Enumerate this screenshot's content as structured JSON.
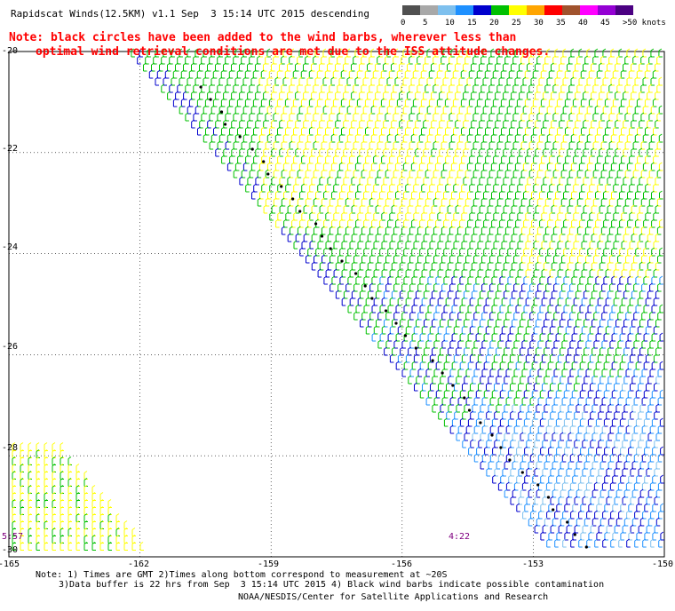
{
  "title": "Rapidscat Winds(12.5KM) v1.1 Sep  3 15:14 UTC 2015 descending",
  "note": {
    "line1": "Note: black circles have been added to the wind barbs, wherever less than",
    "line2": "optimal wind retrieval conditions are met due to the ISS attitude changes."
  },
  "color_scale": {
    "labels": [
      "0",
      "5",
      "10",
      "15",
      "20",
      "25",
      "30",
      "35",
      "40",
      "45",
      ">50 knots"
    ],
    "colors": [
      "#505050",
      "#a8a8a8",
      "#7ec0ee",
      "#1e90ff",
      "#0000cd",
      "#00c000",
      "#ffff00",
      "#ffa500",
      "#ff0000",
      "#a0522d",
      "#ff00ff",
      "#9400d3",
      "#4b0082"
    ]
  },
  "axes": {
    "lat_labels": [
      "-20",
      "-22",
      "-24",
      "-26",
      "-28",
      "-30"
    ],
    "lon_labels": [
      "-165",
      "-162",
      "-159",
      "-156",
      "-153",
      "-150"
    ]
  },
  "time_labels": {
    "left": "5:57",
    "right": "4:22"
  },
  "footer": {
    "line1": "Note: 1) Times are GMT 2)Times along bottom correspond to measurement at ~20S",
    "line2": "3)Data buffer is 22 hrs from Sep  3 15:14 UTC 2015 4) Black wind barbs indicate possible contamination",
    "line3": "NOAA/NESDIS/Center for Satellite Applications and Research"
  },
  "map": {
    "lon_range": [
      -165,
      -150
    ],
    "lat_range": [
      -30,
      -20
    ],
    "swath_edge": "diagonal from near -162.3,-20 to -152.5,-30",
    "lower_left_patch": "yellow and green barbs near -165 to -162, -28 to -30",
    "dominant_colors": [
      "#00c000",
      "#ffff00",
      "#0000cd",
      "#1e90ff"
    ]
  }
}
